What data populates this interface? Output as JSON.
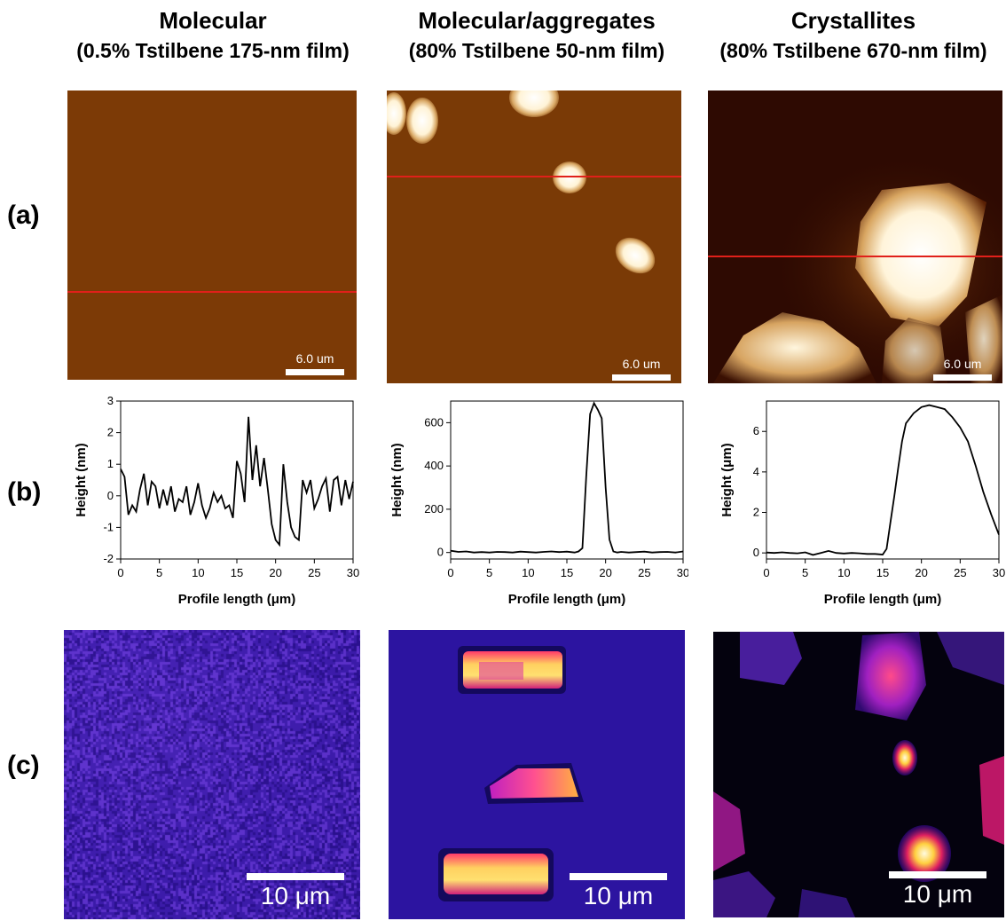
{
  "figure": {
    "columns": [
      {
        "title": "Molecular",
        "subtitle": "(0.5% Tstilbene 175-nm film)"
      },
      {
        "title": "Molecular/aggregates",
        "subtitle": "(80% Tstilbene 50-nm film)"
      },
      {
        "title": "Crystallites",
        "subtitle": "(80% Tstilbene 670-nm film)"
      }
    ],
    "row_labels": [
      "(a)",
      "(b)",
      "(c)"
    ],
    "afm_scale_label": "6.0 um",
    "pl_scale_label": "10 μm",
    "colors": {
      "afm_base": "#7a3a06",
      "profile_line": "#e0201a",
      "pl_bg": "#3a1aa8"
    }
  },
  "chart_data": [
    {
      "type": "line",
      "xlabel": "Profile length (μm)",
      "ylabel": "Height (nm)",
      "xlim": [
        0,
        30
      ],
      "ylim": [
        -2,
        3
      ],
      "xticks": [
        0,
        5,
        10,
        15,
        20,
        25,
        30
      ],
      "yticks": [
        -2,
        -1,
        0,
        1,
        2,
        3
      ],
      "x": [
        0,
        0.5,
        1,
        1.5,
        2,
        2.5,
        3,
        3.5,
        4,
        4.5,
        5,
        5.5,
        6,
        6.5,
        7,
        7.5,
        8,
        8.5,
        9,
        9.5,
        10,
        10.5,
        11,
        11.5,
        12,
        12.5,
        13,
        13.5,
        14,
        14.5,
        15,
        15.5,
        16,
        16.5,
        17,
        17.5,
        18,
        18.5,
        19,
        19.5,
        20,
        20.5,
        21,
        21.5,
        22,
        22.5,
        23,
        23.5,
        24,
        24.5,
        25,
        25.5,
        26,
        26.5,
        27,
        27.5,
        28,
        28.5,
        29,
        29.5,
        30
      ],
      "y": [
        0.85,
        0.6,
        -0.6,
        -0.3,
        -0.5,
        0.2,
        0.7,
        -0.3,
        0.45,
        0.3,
        -0.4,
        0.2,
        -0.3,
        0.3,
        -0.5,
        -0.1,
        -0.2,
        0.3,
        -0.6,
        -0.2,
        0.4,
        -0.3,
        -0.7,
        -0.4,
        0.1,
        -0.2,
        0.0,
        -0.4,
        -0.3,
        -0.7,
        1.1,
        0.7,
        -0.2,
        2.5,
        0.5,
        1.6,
        0.3,
        1.2,
        0.2,
        -0.9,
        -1.4,
        -1.55,
        1.0,
        -0.2,
        -1.0,
        -1.3,
        -1.4,
        0.5,
        0.1,
        0.5,
        -0.4,
        -0.1,
        0.3,
        0.55,
        -0.5,
        0.5,
        0.6,
        -0.3,
        0.5,
        -0.1,
        0.45
      ]
    },
    {
      "type": "line",
      "xlabel": "Profile length (μm)",
      "ylabel": "Height (nm)",
      "xlim": [
        0,
        30
      ],
      "ylim": [
        -30,
        700
      ],
      "xticks": [
        0,
        5,
        10,
        15,
        20,
        25,
        30
      ],
      "yticks": [
        0,
        200,
        400,
        600
      ],
      "x": [
        0,
        1,
        2,
        3,
        4,
        5,
        6,
        7,
        8,
        9,
        10,
        11,
        12,
        13,
        14,
        15,
        16,
        16.5,
        17,
        17.5,
        18,
        18.5,
        19,
        19.5,
        20,
        20.5,
        21,
        21.5,
        22,
        23,
        24,
        25,
        26,
        27,
        28,
        29,
        30
      ],
      "y": [
        8,
        3,
        5,
        0,
        2,
        0,
        3,
        2,
        0,
        4,
        2,
        0,
        3,
        5,
        2,
        4,
        0,
        5,
        20,
        350,
        640,
        690,
        660,
        620,
        300,
        60,
        5,
        0,
        3,
        0,
        2,
        4,
        0,
        2,
        3,
        0,
        5
      ]
    },
    {
      "type": "line",
      "xlabel": "Profile length (μm)",
      "ylabel": "Height (μm)",
      "xlim": [
        0,
        30
      ],
      "ylim": [
        -0.3,
        7.5
      ],
      "xticks": [
        0,
        5,
        10,
        15,
        20,
        25,
        30
      ],
      "yticks": [
        0,
        2,
        4,
        6
      ],
      "x": [
        0,
        1,
        2,
        3,
        4,
        5,
        6,
        7,
        8,
        9,
        10,
        11,
        12,
        13,
        14,
        15,
        15.5,
        16,
        16.5,
        17,
        17.5,
        18,
        19,
        20,
        21,
        22,
        23,
        24,
        25,
        26,
        27,
        28,
        29,
        30
      ],
      "y": [
        0.02,
        0.0,
        0.03,
        0.0,
        -0.02,
        0.03,
        -0.1,
        0.0,
        0.1,
        0.0,
        -0.03,
        0.0,
        -0.02,
        -0.05,
        -0.05,
        -0.08,
        0.2,
        1.5,
        2.8,
        4.2,
        5.5,
        6.4,
        6.9,
        7.2,
        7.3,
        7.2,
        7.1,
        6.7,
        6.2,
        5.5,
        4.3,
        3.0,
        1.9,
        0.9
      ]
    }
  ]
}
